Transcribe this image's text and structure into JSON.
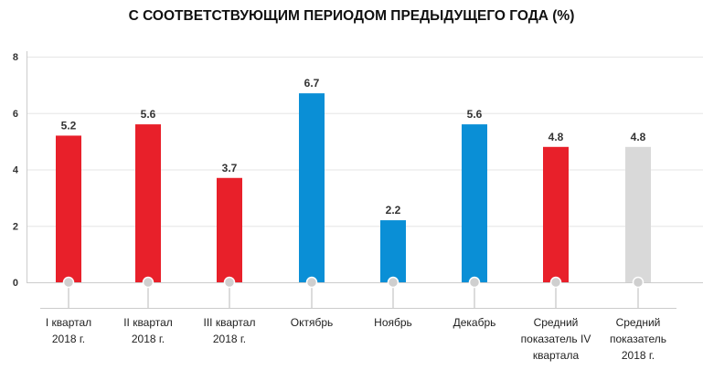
{
  "chart_data": {
    "type": "bar",
    "title": "С СООТВЕТСТВУЮЩИМ ПЕРИОДОМ ПРЕДЫДУЩЕГО ГОДА (%)",
    "categories": [
      [
        "I квартал",
        "2018 г."
      ],
      [
        "II квартал",
        "2018 г."
      ],
      [
        "III квартал",
        "2018 г."
      ],
      [
        "Октябрь"
      ],
      [
        "Ноябрь"
      ],
      [
        "Декабрь"
      ],
      [
        "Средний",
        "показатель IV",
        "квартала"
      ],
      [
        "Средний",
        "показатель",
        "2018 г."
      ]
    ],
    "values": [
      5.2,
      5.6,
      3.7,
      6.7,
      2.2,
      5.6,
      4.8,
      4.8
    ],
    "data_labels": [
      "5.2",
      "5.6",
      "3.7",
      "6.7",
      "2.2",
      "5.6",
      "4.8",
      "4.8"
    ],
    "bar_colors": [
      "#e8202a",
      "#e8202a",
      "#e8202a",
      "#0a8fd6",
      "#0a8fd6",
      "#0a8fd6",
      "#e8202a",
      "#d9d9d9"
    ],
    "yticks": [
      "0",
      "2",
      "4",
      "6",
      "8"
    ],
    "ylim": [
      0,
      8
    ],
    "grid": true,
    "xlabel": "",
    "ylabel": ""
  }
}
